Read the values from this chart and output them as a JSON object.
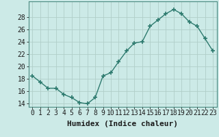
{
  "x": [
    0,
    1,
    2,
    3,
    4,
    5,
    6,
    7,
    8,
    9,
    10,
    11,
    12,
    13,
    14,
    15,
    16,
    17,
    18,
    19,
    20,
    21,
    22,
    23
  ],
  "y": [
    18.5,
    17.5,
    16.5,
    16.5,
    15.5,
    15.0,
    14.2,
    14.0,
    15.0,
    18.5,
    19.0,
    20.8,
    22.5,
    23.8,
    24.0,
    26.5,
    27.5,
    28.5,
    29.2,
    28.5,
    27.2,
    26.5,
    24.5,
    22.5
  ],
  "xlabel": "Humidex (Indice chaleur)",
  "xlim": [
    -0.5,
    23.5
  ],
  "ylim": [
    13.5,
    30.5
  ],
  "yticks": [
    14,
    16,
    18,
    20,
    22,
    24,
    26,
    28
  ],
  "xticks": [
    0,
    1,
    2,
    3,
    4,
    5,
    6,
    7,
    8,
    9,
    10,
    11,
    12,
    13,
    14,
    15,
    16,
    17,
    18,
    19,
    20,
    21,
    22,
    23
  ],
  "line_color": "#2d7a6e",
  "marker": "+",
  "marker_size": 4,
  "line_width": 1.0,
  "bg_color": "#cceae7",
  "grid_color": "#b0cec9",
  "xlabel_fontsize": 8,
  "tick_fontsize": 7
}
